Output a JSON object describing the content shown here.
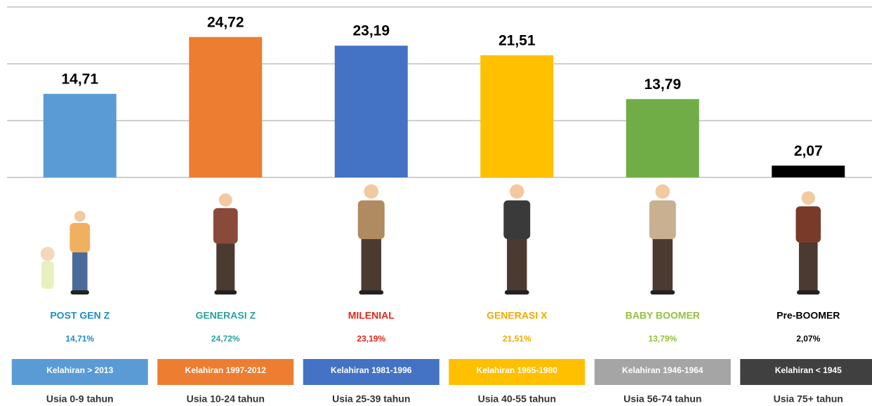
{
  "chart_data": {
    "type": "bar",
    "categories": [
      "POST GEN Z",
      "GENERASI Z",
      "MILENIAL",
      "GENERASI X",
      "BABY BOOMER",
      "Pre-BOOMER"
    ],
    "values": [
      14.71,
      24.72,
      23.19,
      21.51,
      13.79,
      2.07
    ],
    "value_labels": [
      "14,71",
      "24,72",
      "23,19",
      "21,51",
      "13,79",
      "2,07"
    ],
    "colors": [
      "#5b9bd5",
      "#ed7d31",
      "#4472c4",
      "#ffc000",
      "#70ad47",
      "#000000"
    ],
    "label_colors": [
      "#1f8ccc",
      "#2aa39a",
      "#e0261b",
      "#f5a800",
      "#92c13c",
      "#000000"
    ],
    "percent_labels": [
      "14,71%",
      "24,72%",
      "23,19%",
      "21,51%",
      "13,79%",
      "2,07%"
    ],
    "birth_labels": [
      "Kelahiran > 2013",
      "Kelahiran 1997-2012",
      "Kelahiran 1981-1996",
      "Kelahiran 1965-1980",
      "Kelahiran 1946-1964",
      "Kelahiran < 1945"
    ],
    "birth_colors": [
      "#5b9bd5",
      "#ed7d31",
      "#4472c4",
      "#ffc000",
      "#a5a5a5",
      "#404040"
    ],
    "age_labels": [
      "Usia 0-9 tahun",
      "Usia 10-24 tahun",
      "Usia 25-39 tahun",
      "Usia 40-55 tahun",
      "Usia 56-74 tahun",
      "Usia 75+ tahun"
    ],
    "ylim": [
      0,
      30
    ],
    "yticks": [
      0,
      10,
      20,
      30
    ],
    "grid": true
  }
}
